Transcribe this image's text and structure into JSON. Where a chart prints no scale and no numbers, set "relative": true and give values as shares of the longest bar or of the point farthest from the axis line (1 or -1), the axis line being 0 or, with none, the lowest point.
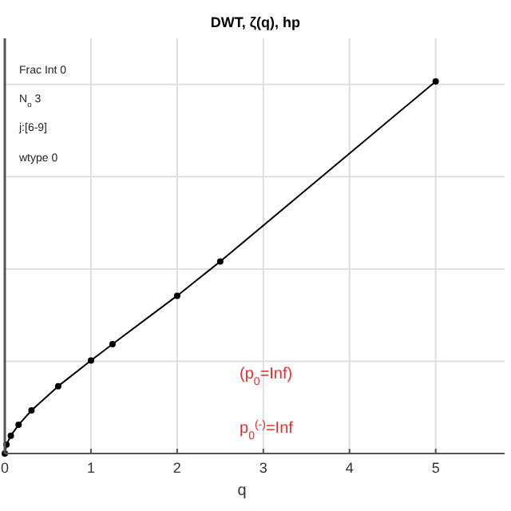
{
  "chart_data": {
    "type": "line",
    "title": "DWT, ζ(q), hp",
    "xlabel": "q",
    "relative": true,
    "x": [
      0,
      0.02,
      0.07,
      0.16,
      0.31,
      0.62,
      1.0,
      1.25,
      2.0,
      2.5,
      5.0
    ],
    "series": [
      {
        "color": "#000000",
        "values": [
          0,
          0.024,
          0.048,
          0.077,
          0.116,
          0.181,
          0.25,
          0.294,
          0.424,
          0.516,
          1
        ]
      }
    ],
    "xlim": [
      0,
      5.8
    ],
    "xticks": [
      0,
      1,
      2,
      3,
      4,
      5
    ],
    "tick_labels": "x",
    "grid": true,
    "marker": "circle",
    "annotations": [
      "Frac Int 0",
      "N$_{o}$ 3",
      "j:[6-9]",
      "wtype 0",
      "(p$_{0}$=Inf)",
      "p$_{0}$$^{(-)}$=Inf"
    ]
  }
}
